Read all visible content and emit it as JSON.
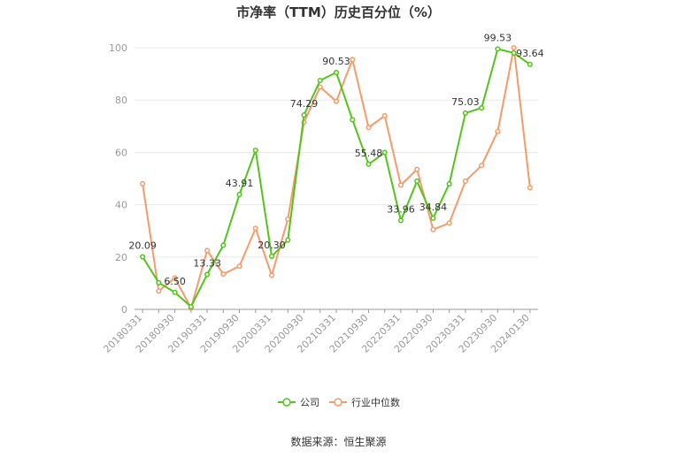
{
  "chart_data": {
    "type": "line",
    "title": "市净率（TTM）历史百分位（%）",
    "xlabel": "",
    "ylabel": "",
    "ylim": [
      0,
      100
    ],
    "yticks": [
      0,
      20,
      40,
      60,
      80,
      100
    ],
    "grid": true,
    "legend_position": "bottom",
    "x": [
      "20180331",
      "20180630",
      "20180930",
      "20181231",
      "20190331",
      "20190630",
      "20190930",
      "20191231",
      "20200331",
      "20200630",
      "20200930",
      "20201231",
      "20210331",
      "20210630",
      "20210930",
      "20211231",
      "20220331",
      "20220630",
      "20220930",
      "20221231",
      "20230331",
      "20230630",
      "20230930",
      "20231231",
      "20240130"
    ],
    "x_tick_labels": [
      "20180331",
      "20180930",
      "20190331",
      "20190930",
      "20200331",
      "20200930",
      "20210331",
      "20210930",
      "20220331",
      "20220930",
      "20230331",
      "20230930",
      "20240130"
    ],
    "series": [
      {
        "name": "公司",
        "color": "#52c41a",
        "values": [
          20.09,
          10.2,
          6.5,
          1.0,
          13.33,
          24.5,
          43.91,
          60.8,
          20.3,
          26.5,
          74.29,
          87.5,
          90.53,
          72.5,
          55.48,
          60.0,
          33.96,
          49.0,
          34.84,
          48.0,
          75.03,
          77.0,
          99.53,
          98.0,
          93.64
        ],
        "labels": {
          "0": "20.09",
          "2": "6.50",
          "4": "13.33",
          "6": "43.91",
          "8": "20.30",
          "10": "74.29",
          "12": "90.53",
          "14": "55.48",
          "16": "33.96",
          "18": "34.84",
          "20": "75.03",
          "22": "99.53",
          "24": "93.64"
        }
      },
      {
        "name": "行业中位数",
        "color": "#f59a6a",
        "values": [
          48.0,
          7.0,
          12.0,
          0.5,
          22.5,
          13.5,
          16.5,
          31.0,
          13.0,
          34.5,
          71.5,
          85.0,
          79.5,
          95.5,
          69.5,
          74.0,
          47.5,
          53.5,
          30.5,
          33.0,
          49.0,
          55.0,
          68.0,
          100.0,
          46.5
        ]
      }
    ],
    "source": "数据来源：恒生聚源"
  }
}
